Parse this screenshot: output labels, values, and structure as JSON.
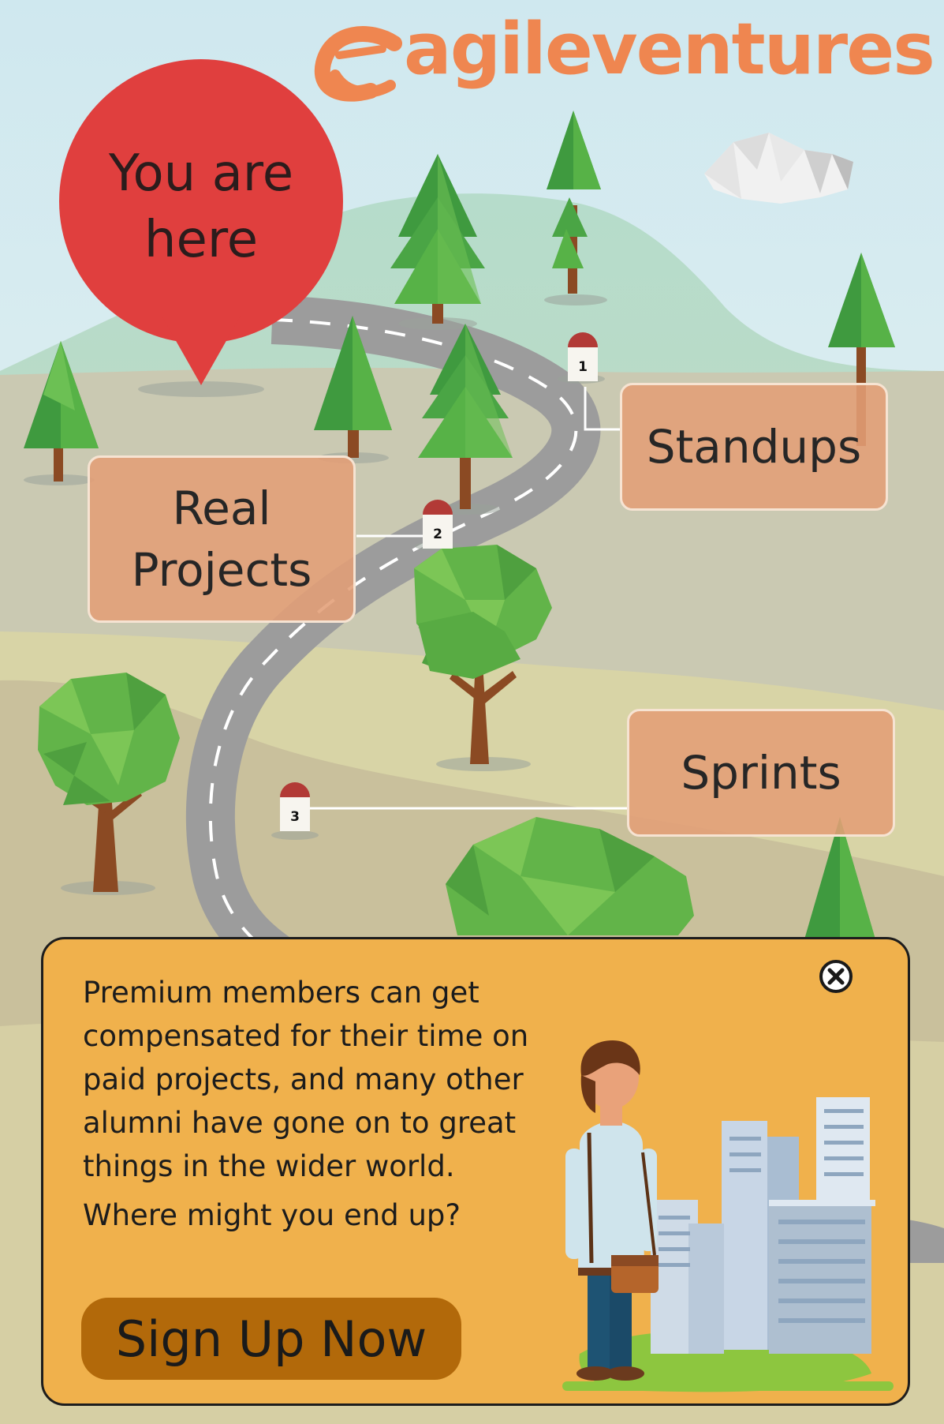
{
  "logo": {
    "text": "agileventures"
  },
  "pin": {
    "line1": "You are",
    "line2": "here"
  },
  "milestones": [
    {
      "number": "1",
      "label": "Standups"
    },
    {
      "number": "2",
      "label_line1": "Real",
      "label_line2": "Projects"
    },
    {
      "number": "3",
      "label": "Sprints"
    }
  ],
  "popup": {
    "body_lines": [
      "Premium members can get",
      "compensated for their time on",
      "paid projects, and many other",
      "alumni have gone on to great",
      "things in the wider world."
    ],
    "question": "Where might you end up?",
    "signup_label": "Sign Up Now"
  },
  "colors": {
    "logo": "#ef8650",
    "pin": "#e03f3e",
    "milestone_box": "#e29e76",
    "popup_bg": "#f0b14c",
    "signup_button": "#b2690a",
    "road": "#9c9c9c"
  },
  "icons": {
    "close": "close-circle-icon",
    "logo_mark": "agileventures-logo-icon"
  }
}
